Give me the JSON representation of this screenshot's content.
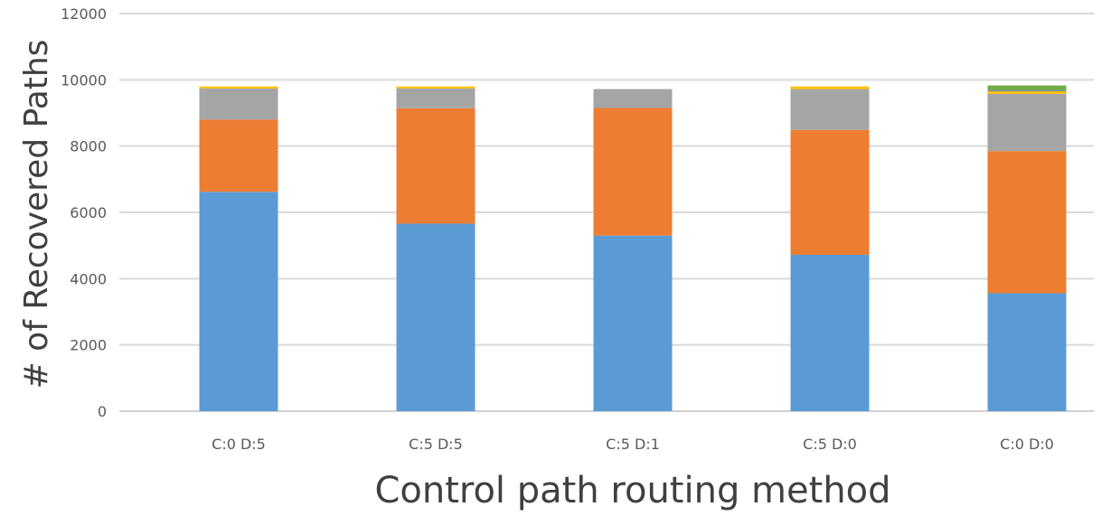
{
  "chart_data": {
    "type": "bar",
    "stacked": true,
    "title": "",
    "xlabel": "Control path routing method",
    "ylabel": "# of Recovered Paths",
    "ylim": [
      0,
      12000
    ],
    "yticks": [
      0,
      2000,
      4000,
      6000,
      8000,
      10000,
      12000
    ],
    "grid": "horizontal",
    "legend": "none",
    "categories": [
      "C:0 D:5",
      "C:5 D:5",
      "C:5 D:1",
      "C:5 D:0",
      "C:0 D:0"
    ],
    "series": [
      {
        "color": "#5B9BD5",
        "values": [
          6620,
          5660,
          5300,
          4720,
          3560
        ]
      },
      {
        "color": "#ED7D31",
        "values": [
          2180,
          3480,
          3850,
          3770,
          4290
        ]
      },
      {
        "color": "#A5A5A5",
        "values": [
          940,
          600,
          570,
          1230,
          1730
        ]
      },
      {
        "color": "#FFC000",
        "values": [
          60,
          60,
          0,
          80,
          80
        ]
      },
      {
        "color": "#4472C4",
        "values": [
          0,
          0,
          0,
          0,
          30
        ]
      },
      {
        "color": "#70AD47",
        "values": [
          0,
          0,
          0,
          0,
          140
        ]
      }
    ]
  }
}
